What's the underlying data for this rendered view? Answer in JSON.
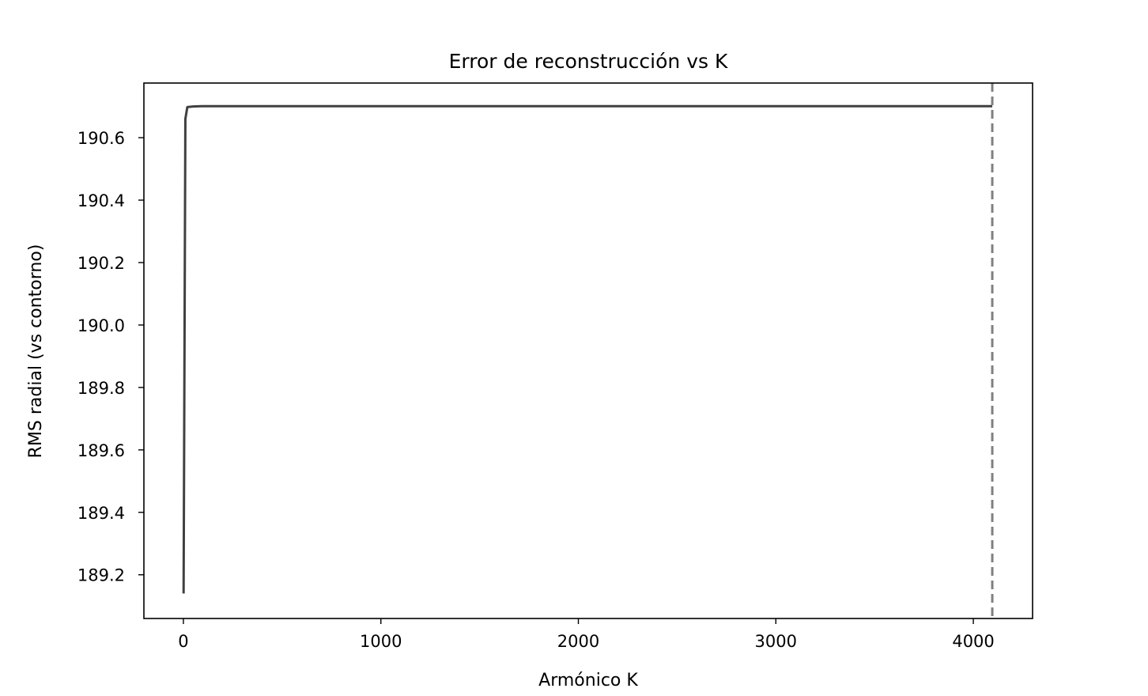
{
  "chart_data": {
    "type": "line",
    "title": "Error de reconstrucción vs K",
    "xlabel": "Armónico K",
    "ylabel": "RMS radial (vs contorno)",
    "xlim": [
      -200,
      4300
    ],
    "ylim": [
      189.06,
      190.775
    ],
    "x_ticks": [
      0,
      1000,
      2000,
      3000,
      4000
    ],
    "x_tick_labels": [
      "0",
      "1000",
      "2000",
      "3000",
      "4000"
    ],
    "y_ticks": [
      189.2,
      189.4,
      189.6,
      189.8,
      190.0,
      190.2,
      190.4,
      190.6
    ],
    "y_tick_labels": [
      "189.2",
      "189.4",
      "189.6",
      "189.8",
      "190.0",
      "190.2",
      "190.4",
      "190.6"
    ],
    "grid": false,
    "series": [
      {
        "color": "#404040",
        "x": [
          1,
          10,
          20,
          50,
          100,
          200,
          500,
          1000,
          2000,
          3000,
          4000,
          4096
        ],
        "y": [
          189.14,
          190.66,
          190.698,
          190.7,
          190.701,
          190.701,
          190.701,
          190.701,
          190.701,
          190.701,
          190.701,
          190.701
        ]
      }
    ],
    "reference_lines": [
      {
        "orientation": "vertical",
        "x": 4096,
        "style": "dashed",
        "color": "#808080"
      }
    ]
  }
}
